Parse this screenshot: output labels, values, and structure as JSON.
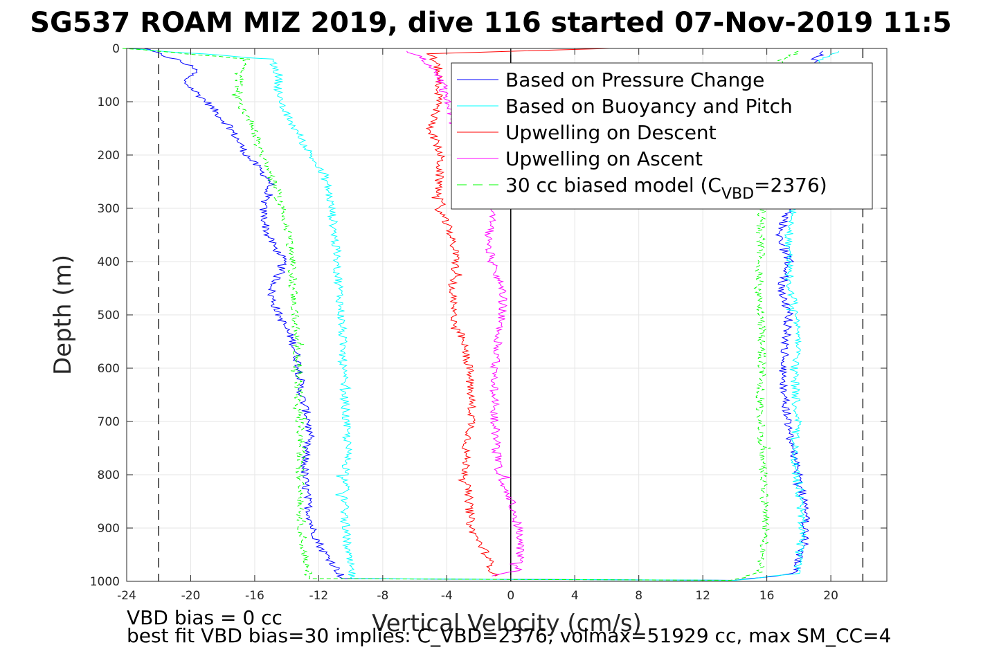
{
  "chart_data": {
    "type": "line",
    "title": "SG537 ROAM MIZ 2019, dive 116 started 07-Nov-2019 11:5",
    "xlabel": "Vertical Velocity (cm/s)",
    "ylabel": "Depth (m)",
    "xlim": [
      -24,
      23.5
    ],
    "ylim": [
      0,
      1000
    ],
    "y_reversed": true,
    "grid": true,
    "legend_position": "top-right",
    "xticks": [
      -24,
      -20,
      -16,
      -12,
      -8,
      -4,
      0,
      4,
      8,
      12,
      16,
      20
    ],
    "xtick_labels": [
      "-24",
      "-20",
      "-16",
      "-12",
      "-8",
      "-4",
      "0",
      "4",
      "8",
      "12",
      "16",
      "20"
    ],
    "yticks": [
      0,
      100,
      200,
      300,
      400,
      500,
      600,
      700,
      800,
      900,
      1000
    ],
    "ytick_labels": [
      "0",
      "100",
      "200",
      "300",
      "400",
      "500",
      "600",
      "700",
      "800",
      "900",
      "1000"
    ],
    "reference_lines": [
      {
        "type": "vertical",
        "x": -22,
        "style": "dashed",
        "color": "#262626"
      },
      {
        "type": "vertical",
        "x": 22,
        "style": "dashed",
        "color": "#262626"
      },
      {
        "type": "vertical",
        "x": 0,
        "style": "solid",
        "color": "#000000"
      }
    ],
    "series": [
      {
        "name": "Based on Pressure Change",
        "color": "#0000ff",
        "style": "solid",
        "points": [
          [
            -23,
            0
          ],
          [
            -21,
            20
          ],
          [
            -19.5,
            40
          ],
          [
            -20.5,
            60
          ],
          [
            -19,
            100
          ],
          [
            -17.5,
            150
          ],
          [
            -16.5,
            200
          ],
          [
            -15,
            250
          ],
          [
            -15.5,
            300
          ],
          [
            -15.2,
            350
          ],
          [
            -14.2,
            400
          ],
          [
            -15,
            460
          ],
          [
            -14.5,
            500
          ],
          [
            -13.6,
            550
          ],
          [
            -13.2,
            600
          ],
          [
            -13.1,
            650
          ],
          [
            -12.6,
            700
          ],
          [
            -12.8,
            750
          ],
          [
            -12.9,
            800
          ],
          [
            -12.7,
            850
          ],
          [
            -12.4,
            900
          ],
          [
            -11.8,
            940
          ],
          [
            -11,
            970
          ],
          [
            -10.5,
            995
          ],
          [
            14,
            998
          ],
          [
            17.8,
            985
          ],
          [
            18,
            950
          ],
          [
            18.5,
            920
          ],
          [
            18.3,
            850
          ],
          [
            18,
            800
          ],
          [
            17.6,
            750
          ],
          [
            17.3,
            700
          ],
          [
            17.1,
            650
          ],
          [
            17,
            600
          ],
          [
            17.2,
            550
          ],
          [
            17.4,
            500
          ],
          [
            16.9,
            450
          ],
          [
            17.4,
            400
          ],
          [
            16.8,
            350
          ],
          [
            17.3,
            300
          ],
          [
            17.8,
            200
          ],
          [
            18.2,
            100
          ],
          [
            18.6,
            40
          ],
          [
            19,
            20
          ],
          [
            19.5,
            5
          ]
        ]
      },
      {
        "name": "Based on Buoyancy and Pitch",
        "color": "#00ffff",
        "style": "solid",
        "points": [
          [
            -24,
            0
          ],
          [
            -15,
            20
          ],
          [
            -14.5,
            50
          ],
          [
            -14.5,
            100
          ],
          [
            -13.5,
            150
          ],
          [
            -12.5,
            200
          ],
          [
            -11.5,
            250
          ],
          [
            -11.2,
            300
          ],
          [
            -11,
            350
          ],
          [
            -10.9,
            400
          ],
          [
            -10.7,
            450
          ],
          [
            -10.6,
            500
          ],
          [
            -10.5,
            550
          ],
          [
            -10.5,
            600
          ],
          [
            -10.4,
            650
          ],
          [
            -10.3,
            700
          ],
          [
            -10.2,
            750
          ],
          [
            -10.3,
            800
          ],
          [
            -10.4,
            850
          ],
          [
            -10.3,
            900
          ],
          [
            -10.2,
            950
          ],
          [
            -9.9,
            995
          ],
          [
            14,
            998
          ],
          [
            17.8,
            985
          ],
          [
            18,
            950
          ],
          [
            18.2,
            900
          ],
          [
            18.1,
            850
          ],
          [
            17.8,
            800
          ],
          [
            17.7,
            750
          ],
          [
            17.9,
            700
          ],
          [
            17.8,
            650
          ],
          [
            17.7,
            600
          ],
          [
            17.9,
            550
          ],
          [
            17.8,
            500
          ],
          [
            17.5,
            450
          ],
          [
            17.3,
            400
          ],
          [
            17.4,
            350
          ],
          [
            17.6,
            300
          ],
          [
            17.8,
            200
          ],
          [
            18.4,
            100
          ],
          [
            18.8,
            40
          ],
          [
            19.5,
            20
          ],
          [
            20.5,
            5
          ]
        ]
      },
      {
        "name": "Upwelling on Descent",
        "color": "#ff0000",
        "style": "solid",
        "points": [
          [
            6,
            0
          ],
          [
            -5,
            10
          ],
          [
            -4.5,
            40
          ],
          [
            -4.5,
            100
          ],
          [
            -5,
            150
          ],
          [
            -4.4,
            200
          ],
          [
            -4.5,
            250
          ],
          [
            -4.5,
            300
          ],
          [
            -3.7,
            350
          ],
          [
            -3.4,
            400
          ],
          [
            -3.7,
            450
          ],
          [
            -3.6,
            500
          ],
          [
            -3,
            550
          ],
          [
            -2.6,
            600
          ],
          [
            -2.5,
            650
          ],
          [
            -2.4,
            700
          ],
          [
            -2.8,
            750
          ],
          [
            -2.8,
            800
          ],
          [
            -2.6,
            850
          ],
          [
            -2.5,
            900
          ],
          [
            -1.5,
            950
          ],
          [
            -1,
            990
          ]
        ]
      },
      {
        "name": "Upwelling on Ascent",
        "color": "#ff00ff",
        "style": "solid",
        "points": [
          [
            -1,
            990
          ],
          [
            0.4,
            980
          ],
          [
            0.6,
            950
          ],
          [
            0.5,
            900
          ],
          [
            0,
            850
          ],
          [
            -0.7,
            800
          ],
          [
            -0.9,
            750
          ],
          [
            -1,
            700
          ],
          [
            -1,
            650
          ],
          [
            -1,
            600
          ],
          [
            -0.8,
            550
          ],
          [
            -0.5,
            500
          ],
          [
            -0.5,
            450
          ],
          [
            -1.2,
            400
          ],
          [
            -1.4,
            350
          ],
          [
            -1.2,
            320
          ],
          [
            -1,
            300
          ],
          [
            -0.8,
            260
          ],
          [
            -2,
            240
          ],
          [
            -3,
            200
          ],
          [
            -3.5,
            150
          ],
          [
            -4,
            100
          ],
          [
            -4.5,
            50
          ],
          [
            -5.5,
            20
          ],
          [
            -6.5,
            5
          ]
        ]
      },
      {
        "name": "30 cc biased model (C_VBD=2376)",
        "color": "#00ff00",
        "style": "dashed",
        "points": [
          [
            -24,
            0
          ],
          [
            -16.5,
            20
          ],
          [
            -17,
            50
          ],
          [
            -17,
            100
          ],
          [
            -16,
            150
          ],
          [
            -15.5,
            200
          ],
          [
            -14.8,
            250
          ],
          [
            -14.3,
            300
          ],
          [
            -13.8,
            350
          ],
          [
            -13.7,
            400
          ],
          [
            -13.6,
            450
          ],
          [
            -13.5,
            500
          ],
          [
            -13.4,
            550
          ],
          [
            -13.2,
            600
          ],
          [
            -13.3,
            650
          ],
          [
            -13.2,
            700
          ],
          [
            -13.1,
            750
          ],
          [
            -13.2,
            800
          ],
          [
            -13.1,
            850
          ],
          [
            -13.1,
            900
          ],
          [
            -12.9,
            950
          ],
          [
            -12.6,
            995
          ],
          [
            14,
            998
          ],
          [
            15.5,
            985
          ],
          [
            15.8,
            950
          ],
          [
            15.9,
            900
          ],
          [
            15.8,
            850
          ],
          [
            15.8,
            800
          ],
          [
            15.6,
            750
          ],
          [
            15.6,
            700
          ],
          [
            15.6,
            650
          ],
          [
            15.7,
            600
          ],
          [
            15.7,
            550
          ],
          [
            15.6,
            500
          ],
          [
            15.5,
            450
          ],
          [
            15.6,
            400
          ],
          [
            15.6,
            350
          ],
          [
            15.7,
            300
          ],
          [
            16,
            200
          ],
          [
            16.3,
            100
          ],
          [
            16.5,
            40
          ],
          [
            17,
            20
          ],
          [
            18,
            5
          ]
        ]
      }
    ],
    "legend": [
      {
        "label": "Based on Pressure Change",
        "color": "#0000ff",
        "dashed": false
      },
      {
        "label": "Based on Buoyancy and Pitch",
        "color": "#00ffff",
        "dashed": false
      },
      {
        "label": "Upwelling on Descent",
        "color": "#ff0000",
        "dashed": false
      },
      {
        "label": "Upwelling on Ascent",
        "color": "#ff00ff",
        "dashed": false
      },
      {
        "label_main": "30 cc biased model (C",
        "label_sub": "VBD",
        "label_tail": "=2376)",
        "color": "#00ff00",
        "dashed": true
      }
    ],
    "annotations": [
      "VBD bias = 0 cc",
      "best fit VBD bias=30 implies: C_VBD=2376, volmax=51929 cc, max SM_CC=4"
    ]
  }
}
